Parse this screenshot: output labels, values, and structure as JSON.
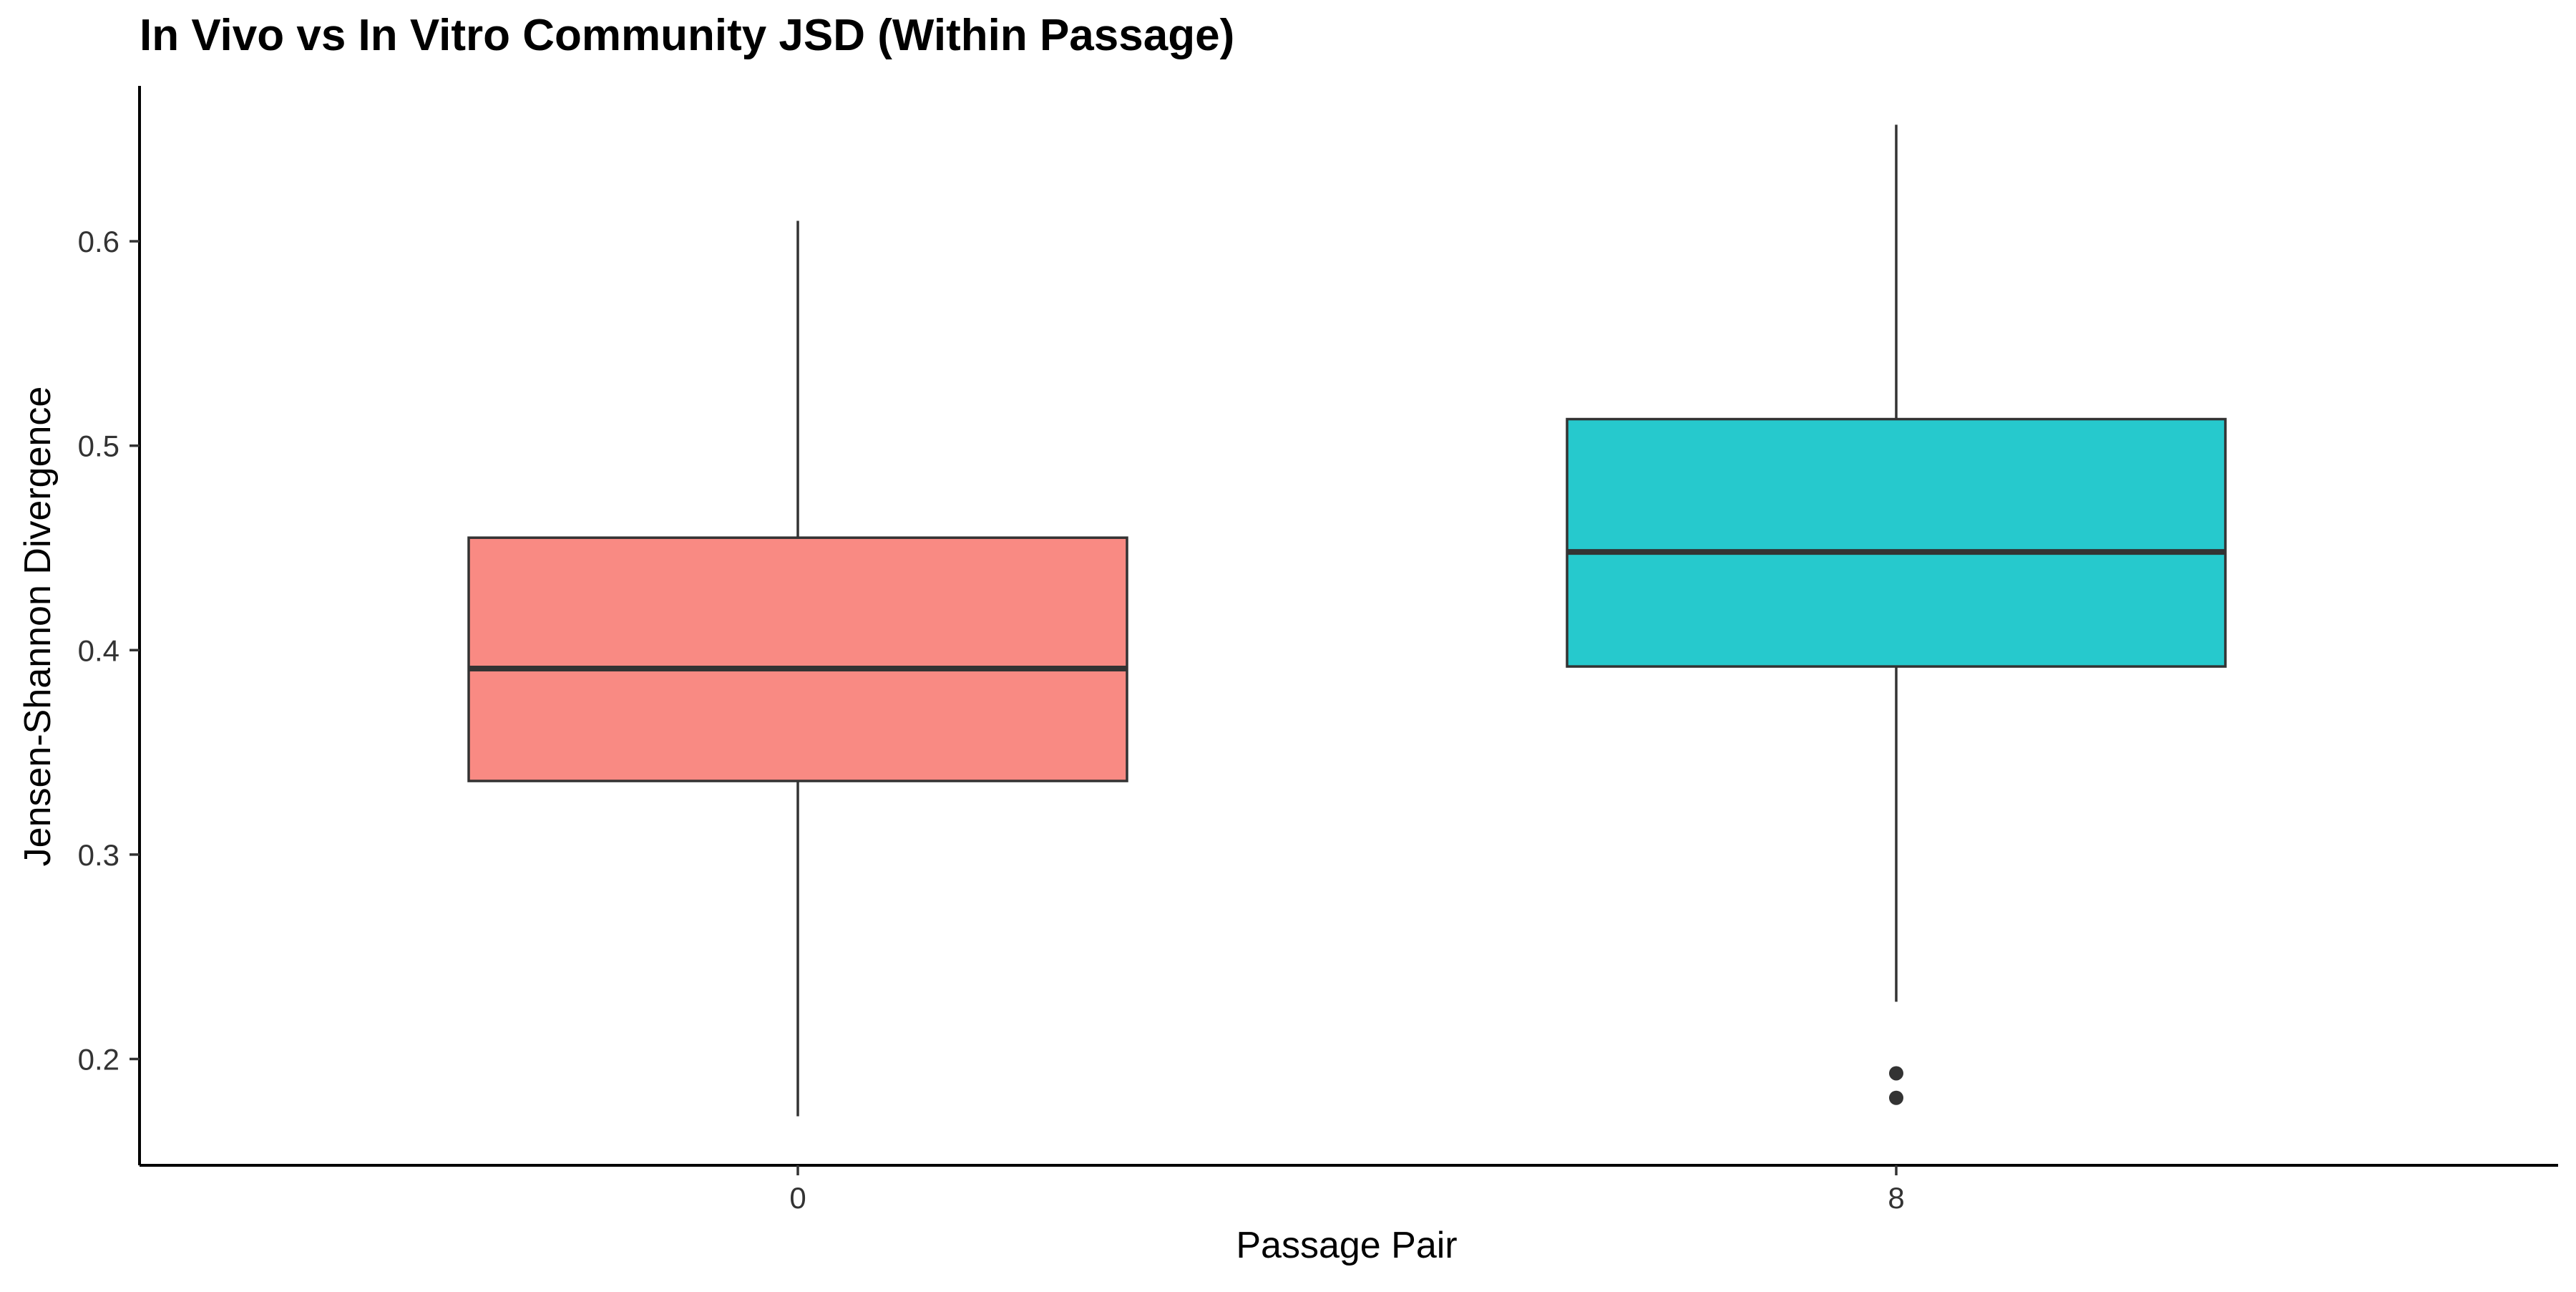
{
  "chart_data": {
    "type": "box",
    "title": "In Vivo vs In Vitro Community JSD (Within Passage)",
    "xlabel": "Passage Pair",
    "ylabel": "Jensen-Shannon Divergence",
    "ylim": [
      0.148,
      0.676
    ],
    "yticks": [
      0.2,
      0.3,
      0.4,
      0.5,
      0.6
    ],
    "ytick_labels": [
      "0.2",
      "0.3",
      "0.4",
      "0.5",
      "0.6"
    ],
    "categories": [
      "0",
      "8"
    ],
    "series": [
      {
        "category": "0",
        "color": "#F8766D",
        "whisker_low": 0.172,
        "q1": 0.336,
        "median": 0.391,
        "q3": 0.455,
        "whisker_high": 0.61,
        "outliers": []
      },
      {
        "category": "8",
        "color": "#00BFC4",
        "whisker_low": 0.228,
        "q1": 0.392,
        "median": 0.448,
        "q3": 0.513,
        "whisker_high": 0.657,
        "outliers": [
          0.181,
          0.193
        ]
      }
    ],
    "grid": false,
    "legend": "none"
  }
}
